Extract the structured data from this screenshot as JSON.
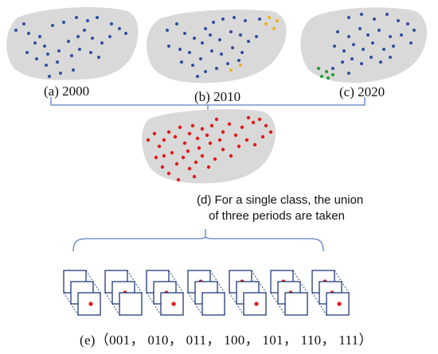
{
  "colors": {
    "blob": "#d9d9d9",
    "point": "#2f4f9e",
    "highlight_2010": "#f2b01e",
    "highlight_2020": "#1e9e2a",
    "union_point": "#e01b1b",
    "bracket": "#5b7fc2",
    "cube": "#1f3a7a"
  },
  "panels": [
    {
      "id": "a",
      "caption": "(a) 2000"
    },
    {
      "id": "b",
      "caption": "(b) 2010"
    },
    {
      "id": "c",
      "caption": "(c) 2020"
    }
  ],
  "union_panel": {
    "caption_line1": "(d)   For a single class, the union",
    "caption_line2": "of three periods  are taken"
  },
  "codes": [
    "001",
    "010",
    "011",
    "100",
    "101",
    "110",
    "111"
  ],
  "codes_caption": "(e)（001， 010， 011， 100， 101， 110， 111）"
}
